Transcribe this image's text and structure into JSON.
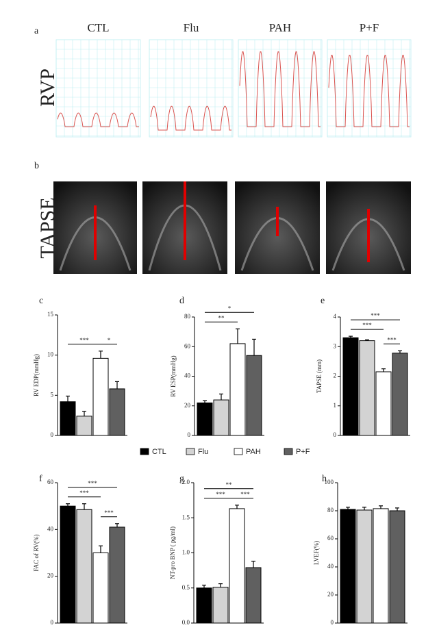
{
  "panel_a": {
    "label": "a",
    "row_label": "RVP",
    "groups": [
      "CTL",
      "Flu",
      "PAH",
      "P+F"
    ]
  },
  "panel_b": {
    "label": "b",
    "row_label": "TAPSE"
  },
  "legend": [
    {
      "name": "CTL",
      "color": "#000000"
    },
    {
      "name": "Flu",
      "color": "#d3d3d3"
    },
    {
      "name": "PAH",
      "color": "#ffffff"
    },
    {
      "name": "P+F",
      "color": "#606060"
    }
  ],
  "chart_data": [
    {
      "type": "bar",
      "label": "c",
      "y_label": "RV EDP(mmHg)",
      "values": [
        4.2,
        2.4,
        9.6,
        5.8
      ],
      "errors": [
        0.7,
        0.6,
        0.9,
        0.9
      ],
      "ylim": [
        0,
        15
      ],
      "yticks": [
        0,
        5,
        10,
        15
      ],
      "brackets": [
        {
          "label": "***",
          "from": 0,
          "to": 2
        },
        {
          "label": "*",
          "from": 2,
          "to": 3
        }
      ]
    },
    {
      "type": "bar",
      "label": "d",
      "y_label": "RV ESP(mmHg)",
      "values": [
        22,
        24,
        62,
        54
      ],
      "errors": [
        1.5,
        4,
        10,
        11
      ],
      "ylim": [
        0,
        80
      ],
      "yticks": [
        0,
        20,
        40,
        60,
        80
      ],
      "brackets": [
        {
          "label": "**",
          "from": 0,
          "to": 2
        },
        {
          "label": "*",
          "from": 0,
          "to": 3
        }
      ]
    },
    {
      "type": "bar",
      "label": "e",
      "y_label": "TAPSE (mm)",
      "values": [
        3.3,
        3.2,
        2.15,
        2.78
      ],
      "errors": [
        0.05,
        0.03,
        0.1,
        0.08
      ],
      "ylim": [
        0,
        4
      ],
      "yticks": [
        0,
        1,
        2,
        3,
        4
      ],
      "brackets": [
        {
          "label": "***",
          "from": 0,
          "to": 2
        },
        {
          "label": "***",
          "from": 2,
          "to": 3
        },
        {
          "label": "***",
          "from": 0,
          "to": 3
        }
      ]
    },
    {
      "type": "bar",
      "label": "f",
      "y_label": "FAC of RV(%)",
      "values": [
        50,
        48.5,
        30,
        41
      ],
      "errors": [
        1,
        2.5,
        3,
        1.5
      ],
      "ylim": [
        0,
        60
      ],
      "yticks": [
        0,
        20,
        40,
        60
      ],
      "brackets": [
        {
          "label": "***",
          "from": 0,
          "to": 2
        },
        {
          "label": "***",
          "from": 2,
          "to": 3
        },
        {
          "label": "***",
          "from": 0,
          "to": 3
        }
      ]
    },
    {
      "type": "bar",
      "label": "g",
      "y_label": "NT-pro BNP ( pg/ml)",
      "values": [
        0.5,
        0.51,
        1.63,
        0.79
      ],
      "errors": [
        0.04,
        0.05,
        0.05,
        0.09
      ],
      "ylim": [
        0,
        2
      ],
      "yticks": [
        {
          "value": 0,
          "label": "0.0"
        },
        {
          "value": 0.5,
          "label": "0.5"
        },
        {
          "value": 1,
          "label": "1.0"
        },
        {
          "value": 1.5,
          "label": "1.5"
        },
        {
          "value": 2,
          "label": "2.0"
        }
      ],
      "brackets": [
        {
          "label": "***",
          "from": 0,
          "to": 2
        },
        {
          "label": "***",
          "from": 2,
          "to": 3
        },
        {
          "label": "**",
          "from": 0,
          "to": 3
        }
      ]
    },
    {
      "type": "bar",
      "label": "h",
      "y_label": "LVEF(%)",
      "values": [
        81,
        80.5,
        81.5,
        80
      ],
      "errors": [
        1.5,
        2,
        2,
        2
      ],
      "ylim": [
        0,
        100
      ],
      "yticks": [
        0,
        20,
        40,
        60,
        80,
        100
      ],
      "brackets": []
    }
  ]
}
